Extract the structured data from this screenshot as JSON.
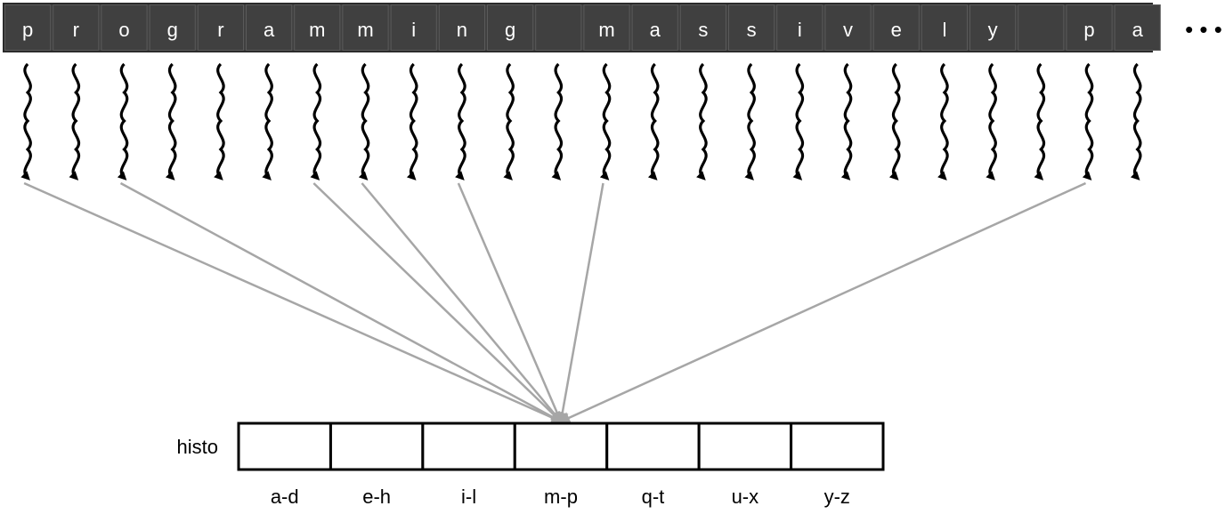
{
  "input_characters": [
    "p",
    "r",
    "o",
    "g",
    "r",
    "a",
    "m",
    "m",
    "i",
    "n",
    "g",
    " ",
    "m",
    "a",
    "s",
    "s",
    "i",
    "v",
    "e",
    "l",
    "y",
    " ",
    "p",
    "a"
  ],
  "ellipsis": "• • •",
  "histogram": {
    "label": "histo",
    "bins": [
      "a-d",
      "e-h",
      "i-l",
      "m-p",
      "q-t",
      "u-x",
      "y-z"
    ],
    "highlighted_bin": "m-p"
  },
  "threads_targeting_highlighted_bin": [
    0,
    2,
    6,
    7,
    9,
    12,
    22
  ],
  "colors": {
    "input_background": "#404040",
    "input_border": "#2b2b2b",
    "input_text": "#ffffff",
    "arrow": "#000000",
    "update_line": "#a6a6a6",
    "histogram_border": "#000000"
  }
}
